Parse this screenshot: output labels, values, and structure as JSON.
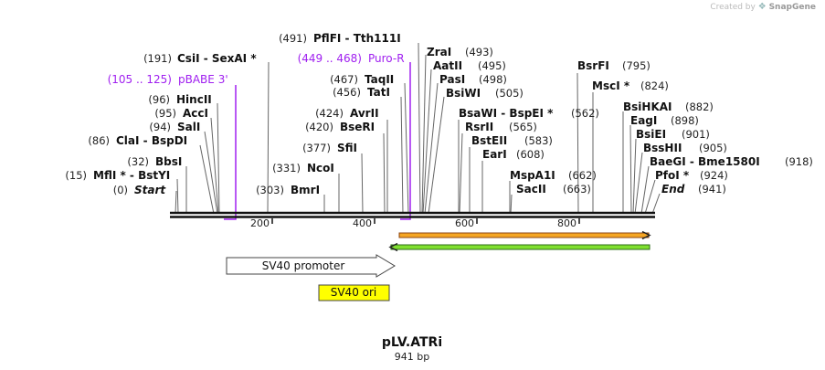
{
  "credit": {
    "prefix": "Created by",
    "brand": "SnapGene"
  },
  "map": {
    "title": "pLV.ATRi",
    "length_label": "941 bp",
    "length": 941,
    "scale_ticks": [
      "200",
      "400",
      "600",
      "800"
    ],
    "features": [
      {
        "name": "SV40 promoter",
        "type": "promoter",
        "strand": "forward",
        "fill": "#ffffff",
        "stroke": "#444444"
      },
      {
        "name": "SV40 ori",
        "type": "rep_origin",
        "fill": "#ffff00",
        "stroke": "#444444"
      },
      {
        "name": "forward-arrow-feature",
        "strand": "forward",
        "color": "#f5a623",
        "stroke": "#8b4513"
      },
      {
        "name": "reverse-arrow-feature",
        "strand": "reverse",
        "color": "#7fdf2f",
        "stroke": "#2e6b1a"
      }
    ],
    "primers": [
      {
        "pos": "(105 .. 125)",
        "name": "pBABE 3'",
        "dir": "forward",
        "color": "#a020f0"
      },
      {
        "pos": "(449 .. 468)",
        "name": "Puro-R",
        "dir": "reverse",
        "color": "#a020f0"
      }
    ],
    "sites": [
      {
        "pos": "(0)",
        "name": "Start",
        "style": "italic"
      },
      {
        "pos": "(15)",
        "name": "MflI *  -  BstYI"
      },
      {
        "pos": "(32)",
        "name": "BbsI"
      },
      {
        "pos": "(86)",
        "name": "ClaI  -  BspDI"
      },
      {
        "pos": "(94)",
        "name": "SalI"
      },
      {
        "pos": "(95)",
        "name": "AccI"
      },
      {
        "pos": "(96)",
        "name": "HincII"
      },
      {
        "pos": "(191)",
        "name": "CsiI  -  SexAI *"
      },
      {
        "pos": "(303)",
        "name": "BmrI"
      },
      {
        "pos": "(331)",
        "name": "NcoI"
      },
      {
        "pos": "(377)",
        "name": "SfiI"
      },
      {
        "pos": "(420)",
        "name": "BseRI"
      },
      {
        "pos": "(424)",
        "name": "AvrII"
      },
      {
        "pos": "(456)",
        "name": "TatI"
      },
      {
        "pos": "(467)",
        "name": "TaqII"
      },
      {
        "pos": "(491)",
        "name": "PflFI  -  Tth111I"
      },
      {
        "pos": "(493)",
        "name": "ZraI"
      },
      {
        "pos": "(495)",
        "name": "AatII"
      },
      {
        "pos": "(498)",
        "name": "PasI"
      },
      {
        "pos": "(505)",
        "name": "BsiWI"
      },
      {
        "pos": "(562)",
        "name": "BsaWI  -  BspEI *"
      },
      {
        "pos": "(565)",
        "name": "RsrII"
      },
      {
        "pos": "(583)",
        "name": "BstEII"
      },
      {
        "pos": "(608)",
        "name": "EarI"
      },
      {
        "pos": "(662)",
        "name": "MspA1I"
      },
      {
        "pos": "(663)",
        "name": "SacII"
      },
      {
        "pos": "(795)",
        "name": "BsrFI"
      },
      {
        "pos": "(824)",
        "name": "MscI *"
      },
      {
        "pos": "(882)",
        "name": "BsiHKAI"
      },
      {
        "pos": "(898)",
        "name": "EagI"
      },
      {
        "pos": "(901)",
        "name": "BsiEI"
      },
      {
        "pos": "(905)",
        "name": "BssHII"
      },
      {
        "pos": "(918)",
        "name": "BaeGI  -  Bme1580I"
      },
      {
        "pos": "(924)",
        "name": "PfoI *"
      },
      {
        "pos": "(941)",
        "name": "End",
        "style": "italic"
      }
    ]
  }
}
